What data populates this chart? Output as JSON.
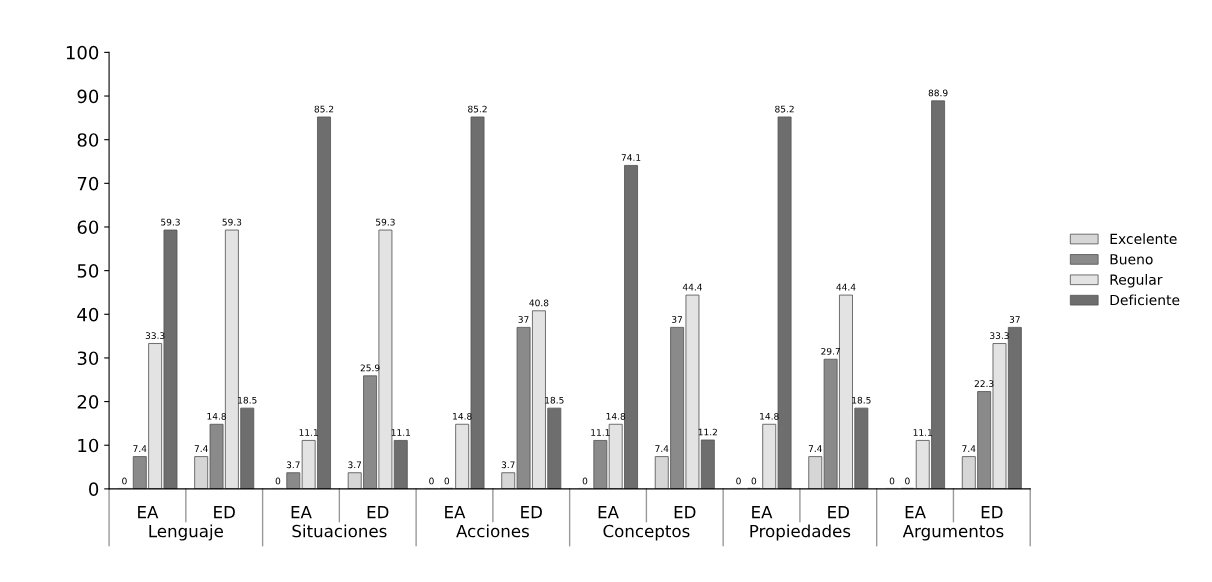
{
  "chart_data": {
    "type": "bar",
    "categories": [
      "EA",
      "ED",
      "EA",
      "ED",
      "EA",
      "ED",
      "EA",
      "ED",
      "EA",
      "ED",
      "EA",
      "ED"
    ],
    "annotations": [
      "Lenguaje",
      "Situaciones",
      "Acciones",
      "Conceptos",
      "Propiedades",
      "Argumentos"
    ],
    "series": [
      {
        "name": "Excelente",
        "color": "#d6d6d6",
        "values": [
          0,
          7.4,
          0,
          3.7,
          0,
          3.7,
          0,
          7.4,
          0,
          7.4,
          0,
          7.4
        ]
      },
      {
        "name": "Bueno",
        "color": "#8a8a8a",
        "values": [
          7.4,
          14.8,
          3.7,
          25.9,
          0,
          37,
          11.1,
          37,
          0,
          29.7,
          0,
          22.3
        ]
      },
      {
        "name": "Regular",
        "color": "#e3e3e3",
        "values": [
          33.3,
          59.3,
          11.1,
          59.3,
          14.8,
          40.8,
          14.8,
          44.4,
          14.8,
          44.4,
          11.1,
          33.3
        ]
      },
      {
        "name": "Deficiente",
        "color": "#6e6e6e",
        "values": [
          59.3,
          18.5,
          85.2,
          11.1,
          85.2,
          18.5,
          74.1,
          11.2,
          85.2,
          18.5,
          88.9,
          37
        ]
      }
    ],
    "ylim": [
      0,
      100
    ],
    "yticks": [
      0,
      10,
      20,
      30,
      40,
      50,
      60,
      70,
      80,
      90,
      100
    ],
    "data_labels": true,
    "legend": "right",
    "grid": false
  }
}
